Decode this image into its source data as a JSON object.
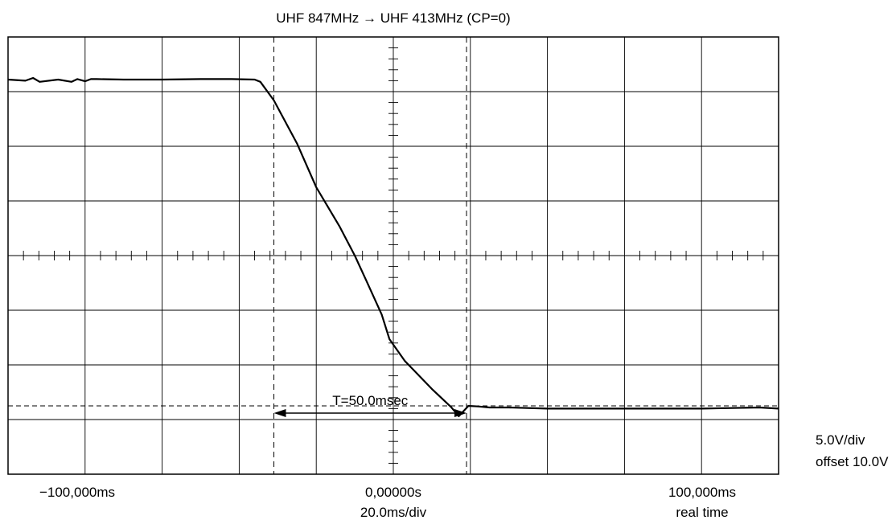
{
  "chart_data": {
    "type": "line",
    "title": "UHF 847MHz → UHF 413MHz (CP=0)",
    "x_unit": "ms",
    "xlim": [
      -100,
      100
    ],
    "ylim": [
      0,
      8
    ],
    "y_unit": "div",
    "divisions": {
      "x": 10,
      "y": 8
    },
    "grid": true,
    "series": [
      {
        "x": [
          -100.0,
          -95.5,
          -93.5,
          -91.8,
          -87.0,
          -83.5,
          -82.0,
          -80.0,
          -78.5,
          -77.0,
          -70.0,
          -60.0,
          -50.0,
          -42.0,
          -36.0,
          -34.5,
          -31.0,
          -25.0,
          -20.0,
          -14.0,
          -10.0,
          -7.0,
          -3.0,
          -1.0,
          3.0,
          10.0,
          15.0,
          17.0,
          19.5,
          22.0,
          25.0,
          30.0,
          40.0,
          60.0,
          80.0,
          95.0,
          100.0
        ],
        "y": [
          7.22,
          7.2,
          7.25,
          7.18,
          7.22,
          7.18,
          7.23,
          7.19,
          7.23,
          7.23,
          7.22,
          7.22,
          7.23,
          7.23,
          7.22,
          7.18,
          6.84,
          6.05,
          5.25,
          4.54,
          4.0,
          3.54,
          2.92,
          2.47,
          2.07,
          1.56,
          1.23,
          1.06,
          1.25,
          1.24,
          1.22,
          1.22,
          1.2,
          1.2,
          1.2,
          1.22,
          1.2
        ]
      }
    ],
    "cursors": {
      "vertical_ms": [
        -31.0,
        19.0
      ],
      "horizontal_div": [
        1.25
      ]
    },
    "measurement": "T=50.0msec",
    "scale_label": "5.0V/div",
    "offset_label": "offset 10.0V",
    "x_left_label": "−100,000ms",
    "x_center_label": "0,00000s",
    "x_right_label": "100,000ms",
    "timebase_label": "20.0ms/div",
    "mode_label": "real time"
  }
}
